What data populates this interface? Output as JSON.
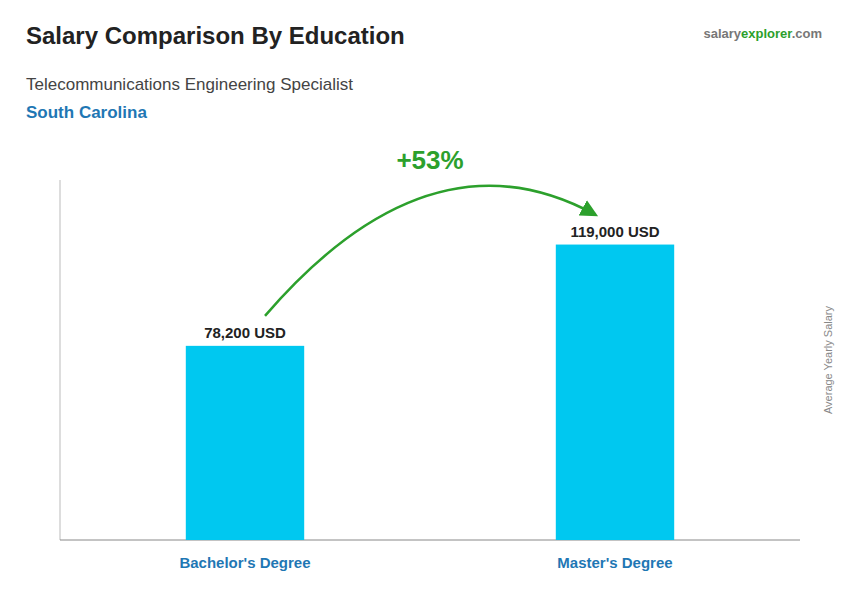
{
  "chart_data": {
    "type": "bar",
    "title": "Salary Comparison By Education",
    "subtitle": "Telecommunications Engineering Specialist",
    "location": "South Carolina",
    "brand": [
      "salary",
      "explorer",
      ".com"
    ],
    "y_label": "Average Yearly Salary",
    "categories": [
      "Bachelor's Degree",
      "Master's Degree"
    ],
    "values": [
      78200,
      119000
    ],
    "value_labels": [
      "78,200 USD",
      "119,000 USD"
    ],
    "data_labels": true,
    "annotations": [
      "+53%"
    ],
    "color": "#00c8f0",
    "ylim": [
      0,
      145000
    ],
    "grid": false,
    "tick_labels": false
  }
}
